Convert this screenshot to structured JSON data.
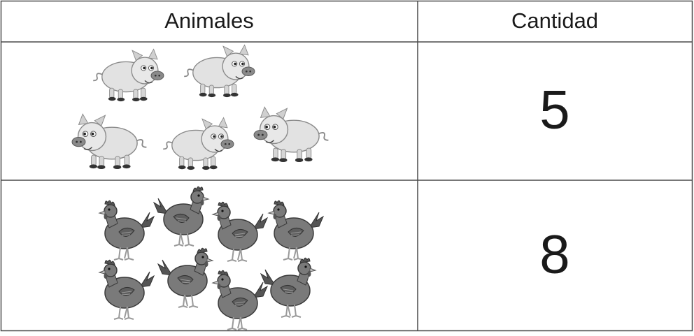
{
  "table": {
    "header": [
      "Animales",
      "Cantidad"
    ],
    "rows": [
      {
        "cantidad": "5"
      },
      {
        "cantidad": "8"
      }
    ]
  }
}
